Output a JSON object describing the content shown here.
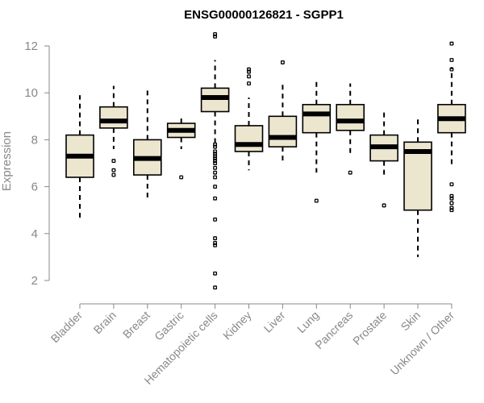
{
  "chart_data": {
    "type": "boxplot",
    "title": "ENSG00000126821 - SGPP1",
    "xlabel": "",
    "ylabel": "Expression",
    "ylim": [
      1.6,
      12.5
    ],
    "yticks": [
      2,
      4,
      6,
      8,
      10,
      12
    ],
    "box_fill": "#ede6cf",
    "categories": [
      "Bladder",
      "Brain",
      "Breast",
      "Gastric",
      "Hematopoietic cells",
      "Kidney",
      "Liver",
      "Lung",
      "Pancreas",
      "Prostate",
      "Skin",
      "Unknown / Other"
    ],
    "boxes": [
      {
        "name": "Bladder",
        "whisker_low": 4.6,
        "q1": 6.4,
        "median": 7.3,
        "q3": 8.2,
        "whisker_high": 9.9,
        "outliers": []
      },
      {
        "name": "Brain",
        "whisker_low": 7.6,
        "q1": 8.5,
        "median": 8.8,
        "q3": 9.4,
        "whisker_high": 10.3,
        "outliers": [
          6.5,
          6.7,
          7.1
        ]
      },
      {
        "name": "Breast",
        "whisker_low": 5.5,
        "q1": 6.5,
        "median": 7.2,
        "q3": 8.0,
        "whisker_high": 10.1,
        "outliers": []
      },
      {
        "name": "Gastric",
        "whisker_low": 7.6,
        "q1": 8.1,
        "median": 8.4,
        "q3": 8.7,
        "whisker_high": 9.0,
        "outliers": [
          6.4
        ]
      },
      {
        "name": "Hematopoietic cells",
        "whisker_low": 7.8,
        "q1": 9.2,
        "median": 9.8,
        "q3": 10.2,
        "whisker_high": 11.4,
        "outliers": [
          12.4,
          12.5,
          7.8,
          7.7,
          7.5,
          7.4,
          7.3,
          7.2,
          7.1,
          7.0,
          6.8,
          6.6,
          6.4,
          6.0,
          5.5,
          4.6,
          3.8,
          3.6,
          3.5,
          2.3,
          1.7
        ]
      },
      {
        "name": "Kidney",
        "whisker_low": 6.7,
        "q1": 7.5,
        "median": 7.8,
        "q3": 8.6,
        "whisker_high": 9.8,
        "outliers": [
          10.4,
          10.7,
          10.9,
          11.0
        ]
      },
      {
        "name": "Liver",
        "whisker_low": 7.0,
        "q1": 7.7,
        "median": 8.1,
        "q3": 9.0,
        "whisker_high": 10.4,
        "outliers": [
          11.3
        ]
      },
      {
        "name": "Lung",
        "whisker_low": 6.6,
        "q1": 8.3,
        "median": 9.1,
        "q3": 9.5,
        "whisker_high": 10.6,
        "outliers": [
          5.4
        ]
      },
      {
        "name": "Pancreas",
        "whisker_low": 7.3,
        "q1": 8.4,
        "median": 8.8,
        "q3": 9.5,
        "whisker_high": 10.4,
        "outliers": [
          6.6
        ]
      },
      {
        "name": "Prostate",
        "whisker_low": 6.5,
        "q1": 7.1,
        "median": 7.7,
        "q3": 8.2,
        "whisker_high": 9.3,
        "outliers": [
          5.2
        ]
      },
      {
        "name": "Skin",
        "whisker_low": 3.0,
        "q1": 5.0,
        "median": 7.5,
        "q3": 7.9,
        "whisker_high": 9.0,
        "outliers": []
      },
      {
        "name": "Unknown / Other",
        "whisker_low": 6.9,
        "q1": 8.3,
        "median": 8.9,
        "q3": 9.5,
        "whisker_high": 11.1,
        "outliers": [
          12.1,
          11.4,
          11.0,
          6.1,
          5.6,
          5.5,
          5.3,
          5.1,
          5.0
        ]
      }
    ]
  }
}
